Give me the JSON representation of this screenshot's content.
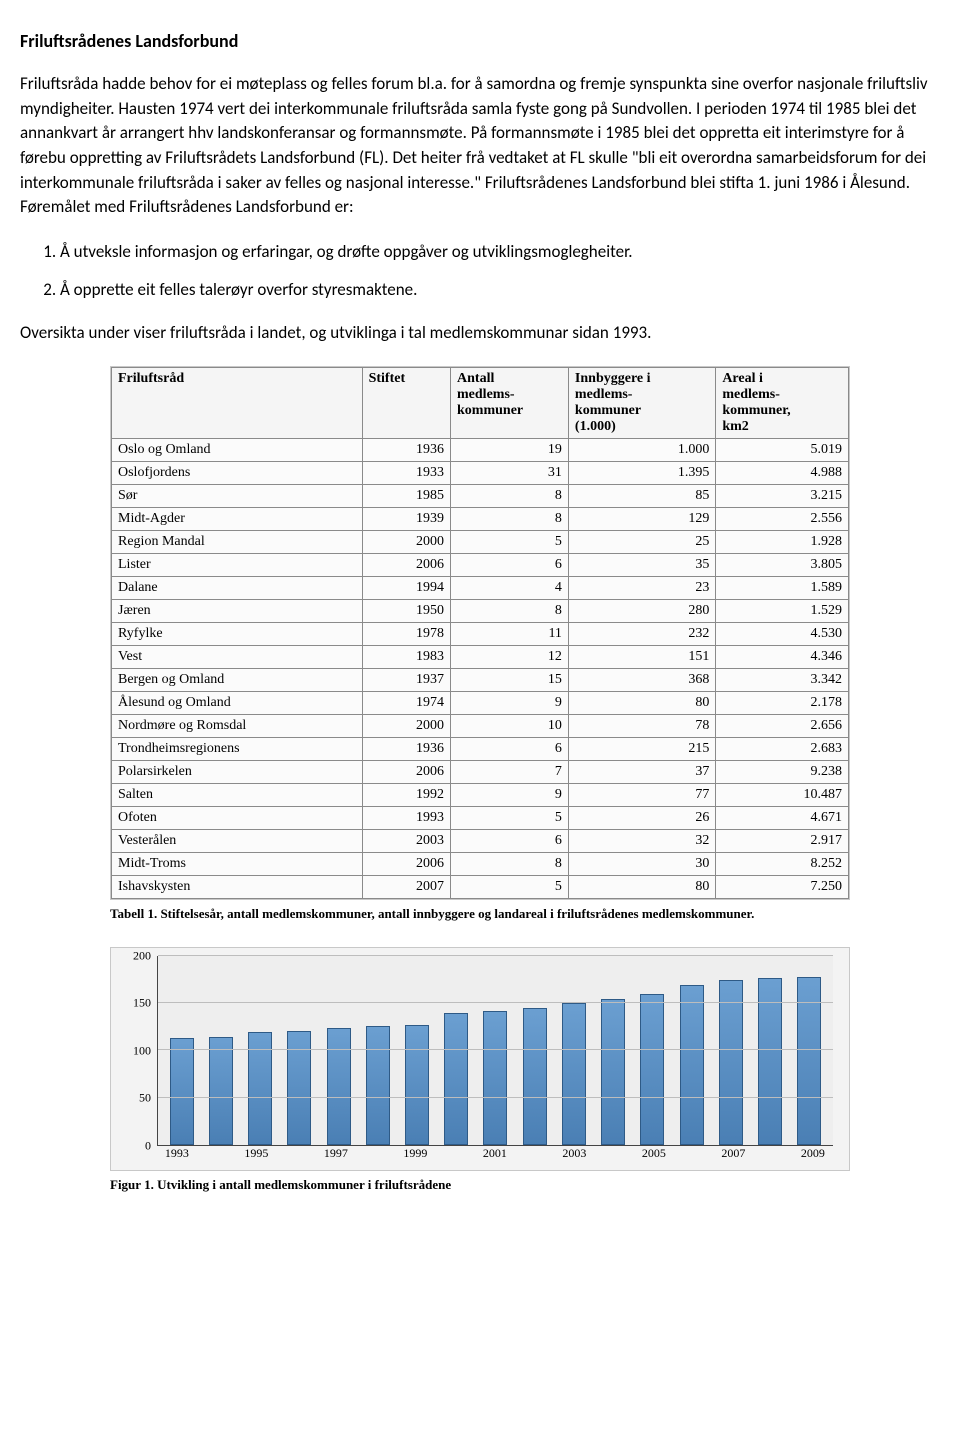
{
  "title": "Friluftsrådenes Landsforbund",
  "para1": "Friluftsråda hadde behov for ei møteplass og felles forum bl.a. for å samordna og fremje synspunkta sine overfor nasjonale friluftsliv myndigheiter. Hausten 1974 vert dei interkommunale friluftsråda samla fyste gong på Sundvollen. I perioden 1974 til 1985 blei det annankvart år arrangert hhv landskonferansar og formannsmøte. På formannsmøte i 1985 blei det oppretta eit interimstyre for å førebu oppretting av Friluftsrådets Landsforbund (FL). Det heiter frå vedtaket at FL skulle \"bli eit overordna samarbeidsforum for dei interkommunale friluftsråda i saker av felles og nasjonal interesse.\" Friluftsrådenes Landsforbund blei stifta  1. juni 1986 i Ålesund. Føremålet med Friluftsrådenes Landsforbund er:",
  "list": {
    "item1": "Å utveksle informasjon og erfaringar, og drøfte oppgåver og utviklingsmoglegheiter.",
    "item2": "Å opprette eit felles talerøyr overfor styresmaktene."
  },
  "para2": "Oversikta under viser friluftsråda i landet, og utviklinga i tal medlemskommunar sidan 1993.",
  "table": {
    "headers": {
      "c0": "Friluftsråd",
      "c1": "Stiftet",
      "c2_l1": "Antall",
      "c2_l2": "medlems-",
      "c2_l3": "kommuner",
      "c3_l1": "Innbyggere i",
      "c3_l2": "medlems-",
      "c3_l3": "kommuner",
      "c3_l4": "(1.000)",
      "c4_l1": "Areal i",
      "c4_l2": "medlems-",
      "c4_l3": "kommuner,",
      "c4_l4": "km2"
    },
    "rows": [
      {
        "c0": "Oslo og Omland",
        "c1": "1936",
        "c2": "19",
        "c3": "1.000",
        "c4": "5.019"
      },
      {
        "c0": "Oslofjordens",
        "c1": "1933",
        "c2": "31",
        "c3": "1.395",
        "c4": "4.988"
      },
      {
        "c0": "Sør",
        "c1": "1985",
        "c2": "8",
        "c3": "85",
        "c4": "3.215"
      },
      {
        "c0": "Midt-Agder",
        "c1": "1939",
        "c2": "8",
        "c3": "129",
        "c4": "2.556"
      },
      {
        "c0": "Region Mandal",
        "c1": "2000",
        "c2": "5",
        "c3": "25",
        "c4": "1.928"
      },
      {
        "c0": "Lister",
        "c1": "2006",
        "c2": "6",
        "c3": "35",
        "c4": "3.805"
      },
      {
        "c0": "Dalane",
        "c1": "1994",
        "c2": "4",
        "c3": "23",
        "c4": "1.589"
      },
      {
        "c0": "Jæren",
        "c1": "1950",
        "c2": "8",
        "c3": "280",
        "c4": "1.529"
      },
      {
        "c0": "Ryfylke",
        "c1": "1978",
        "c2": "11",
        "c3": "232",
        "c4": "4.530"
      },
      {
        "c0": "Vest",
        "c1": "1983",
        "c2": "12",
        "c3": "151",
        "c4": "4.346"
      },
      {
        "c0": "Bergen og Omland",
        "c1": "1937",
        "c2": "15",
        "c3": "368",
        "c4": "3.342"
      },
      {
        "c0": "Ålesund og Omland",
        "c1": "1974",
        "c2": "9",
        "c3": "80",
        "c4": "2.178"
      },
      {
        "c0": "Nordmøre og Romsdal",
        "c1": "2000",
        "c2": "10",
        "c3": "78",
        "c4": "2.656"
      },
      {
        "c0": "Trondheimsregionens",
        "c1": "1936",
        "c2": "6",
        "c3": "215",
        "c4": "2.683"
      },
      {
        "c0": "Polarsirkelen",
        "c1": "2006",
        "c2": "7",
        "c3": "37",
        "c4": "9.238"
      },
      {
        "c0": "Salten",
        "c1": "1992",
        "c2": "9",
        "c3": "77",
        "c4": "10.487"
      },
      {
        "c0": "Ofoten",
        "c1": "1993",
        "c2": "5",
        "c3": "26",
        "c4": "4.671"
      },
      {
        "c0": "Vesterålen",
        "c1": "2003",
        "c2": "6",
        "c3": "32",
        "c4": "2.917"
      },
      {
        "c0": "Midt-Troms",
        "c1": "2006",
        "c2": "8",
        "c3": "30",
        "c4": "8.252"
      },
      {
        "c0": "Ishavskysten",
        "c1": "2007",
        "c2": "5",
        "c3": "80",
        "c4": "7.250"
      }
    ],
    "col_widths": [
      "34%",
      "12%",
      "16%",
      "20%",
      "18%"
    ]
  },
  "table_caption_bold": "Tabell 1. Stiftelsesår, antall medlemskommuner, antall innbyggere og landareal i friluftsrådenes medlemskommuner.",
  "chart": {
    "type": "bar",
    "ymax": 200,
    "yticks": [
      0,
      50,
      100,
      150,
      200
    ],
    "years": [
      "1993",
      "1994",
      "1995",
      "1996",
      "1997",
      "1998",
      "1999",
      "2000",
      "2001",
      "2002",
      "2003",
      "2004",
      "2005",
      "2006",
      "2007",
      "2008",
      "2009"
    ],
    "x_labels_shown": [
      "1993",
      "",
      "1995",
      "",
      "1997",
      "",
      "1999",
      "",
      "2001",
      "",
      "2003",
      "",
      "2005",
      "",
      "2007",
      "",
      "2009"
    ],
    "values": [
      113,
      114,
      120,
      121,
      124,
      126,
      127,
      140,
      142,
      145,
      150,
      155,
      160,
      169,
      175,
      177,
      178
    ],
    "bar_fill_top": "#6b9fd1",
    "bar_fill_bottom": "#4a7fb4",
    "bar_border": "#2e5a86",
    "bg": "#eeeeee",
    "grid": "#bdbdbd",
    "axis": "#444444"
  },
  "fig_caption": "Figur 1. Utvikling i antall medlemskommuner i friluftsrådene"
}
